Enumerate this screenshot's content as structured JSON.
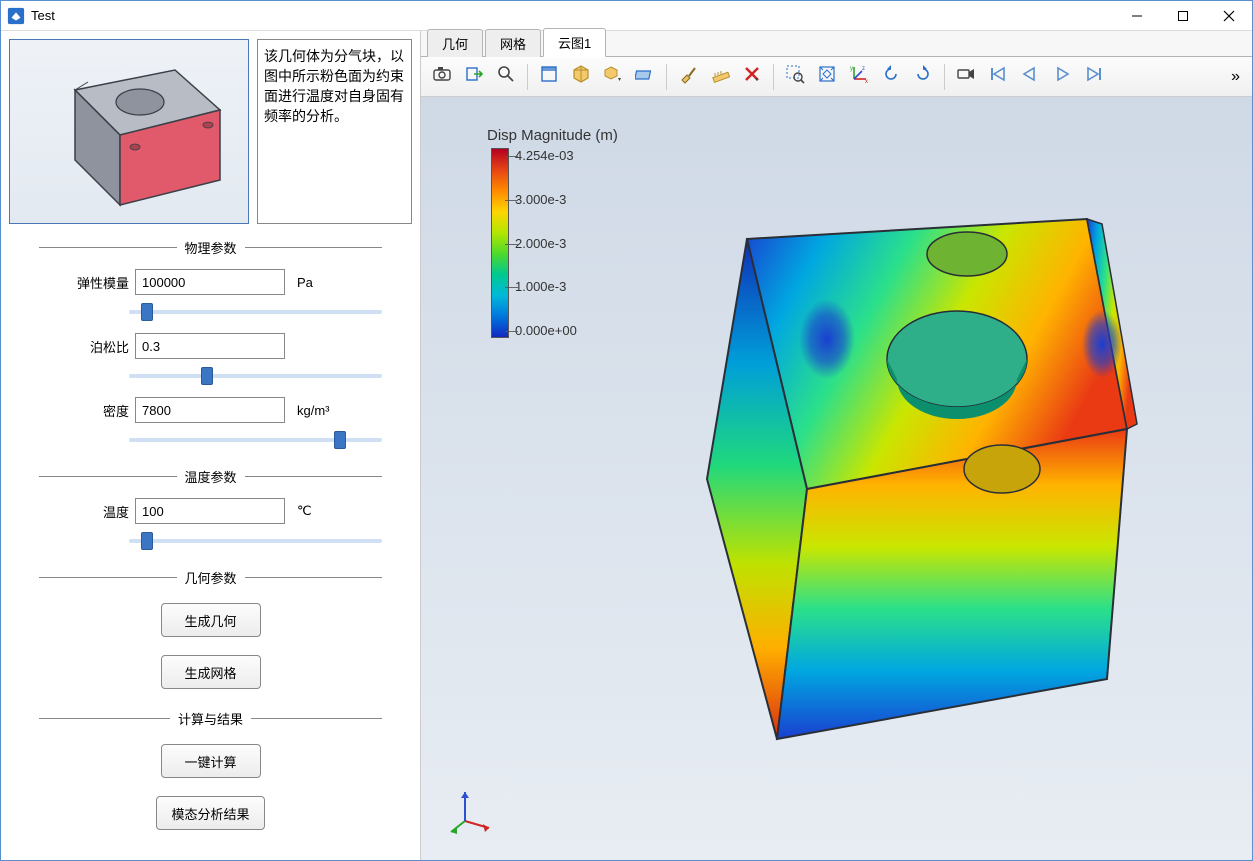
{
  "window": {
    "title": "Test",
    "accent_color": "#2a6fc9"
  },
  "thumbnail": {
    "description": "该几何体为分气块，以图中所示粉色面为约束面进行温度对自身固有频率的分析。",
    "block": {
      "face_top": "#b7bcc5",
      "face_left": "#8e939d",
      "face_right": "#e05a6b",
      "edge": "#3a3f48",
      "bg_top": "#eef2f7",
      "bg_bottom": "#e3e9f1"
    }
  },
  "groups": {
    "physical": {
      "title": "物理参数"
    },
    "temperature": {
      "title": "温度参数"
    },
    "geometry": {
      "title": "几何参数"
    },
    "compute": {
      "title": "计算与结果"
    }
  },
  "params": {
    "elastic_modulus": {
      "label": "弹性模量",
      "value": "100000",
      "unit": "Pa",
      "slider": 5
    },
    "poisson_ratio": {
      "label": "泊松比",
      "value": "0.3",
      "unit": "",
      "slider": 30
    },
    "density": {
      "label": "密度",
      "value": "7800",
      "unit": "kg/m³",
      "slider": 85
    },
    "temperature": {
      "label": "温度",
      "value": "100",
      "unit": "℃",
      "slider": 5
    }
  },
  "buttons": {
    "gen_geometry": "生成几何",
    "gen_mesh": "生成网格",
    "one_click_compute": "一键计算",
    "modal_results": "模态分析结果"
  },
  "tabs": {
    "items": [
      "几何",
      "网格",
      "云图1"
    ],
    "active_index": 2
  },
  "toolbar": {
    "icons": [
      "camera-icon",
      "export-icon",
      "magnifier-icon",
      "sep",
      "select-window-icon",
      "cube-orient-icon",
      "cube-dropdown-icon",
      "plane-icon",
      "sep",
      "brush-icon",
      "ruler-icon",
      "delete-x-icon",
      "sep",
      "zoom-select-icon",
      "fit-view-icon",
      "axes-icon",
      "rotate-ccw-icon",
      "rotate-cw-icon",
      "sep",
      "record-icon",
      "rewind-start-icon",
      "step-back-icon",
      "play-icon",
      "step-forward-icon"
    ],
    "more": "»"
  },
  "viewport": {
    "legend": {
      "title": "Disp Magnitude (m)",
      "max": "4.254e-03",
      "ticks": [
        "4.254e-03",
        "3.000e-3",
        "2.000e-3",
        "1.000e-3",
        "0.000e+00"
      ],
      "gradient": [
        "#b50021",
        "#e64415",
        "#ff8a00",
        "#ffd500",
        "#b4e600",
        "#4fd92b",
        "#00c98f",
        "#00b9d9",
        "#0077dd",
        "#1028c0"
      ]
    },
    "model": {
      "top_gradient": [
        "#1a3fd0",
        "#00a7e0",
        "#2be08a",
        "#c9e600",
        "#ffb300",
        "#ea3a14"
      ],
      "front_gradient": [
        "#ea3a14",
        "#ffb300",
        "#c9e600",
        "#2be08a",
        "#00a7e0",
        "#1a3fd0"
      ],
      "side_gradient": [
        "#0f2fb8",
        "#009fd8",
        "#1fd87e",
        "#bfe200",
        "#ffae00",
        "#da2f10"
      ],
      "edge": "#2a2f37"
    },
    "triad": {
      "x": "#d02525",
      "y": "#2aa52a",
      "z": "#2a52d0"
    },
    "bg_top": "#cfd9e6",
    "bg_bottom": "#e8edf3"
  }
}
